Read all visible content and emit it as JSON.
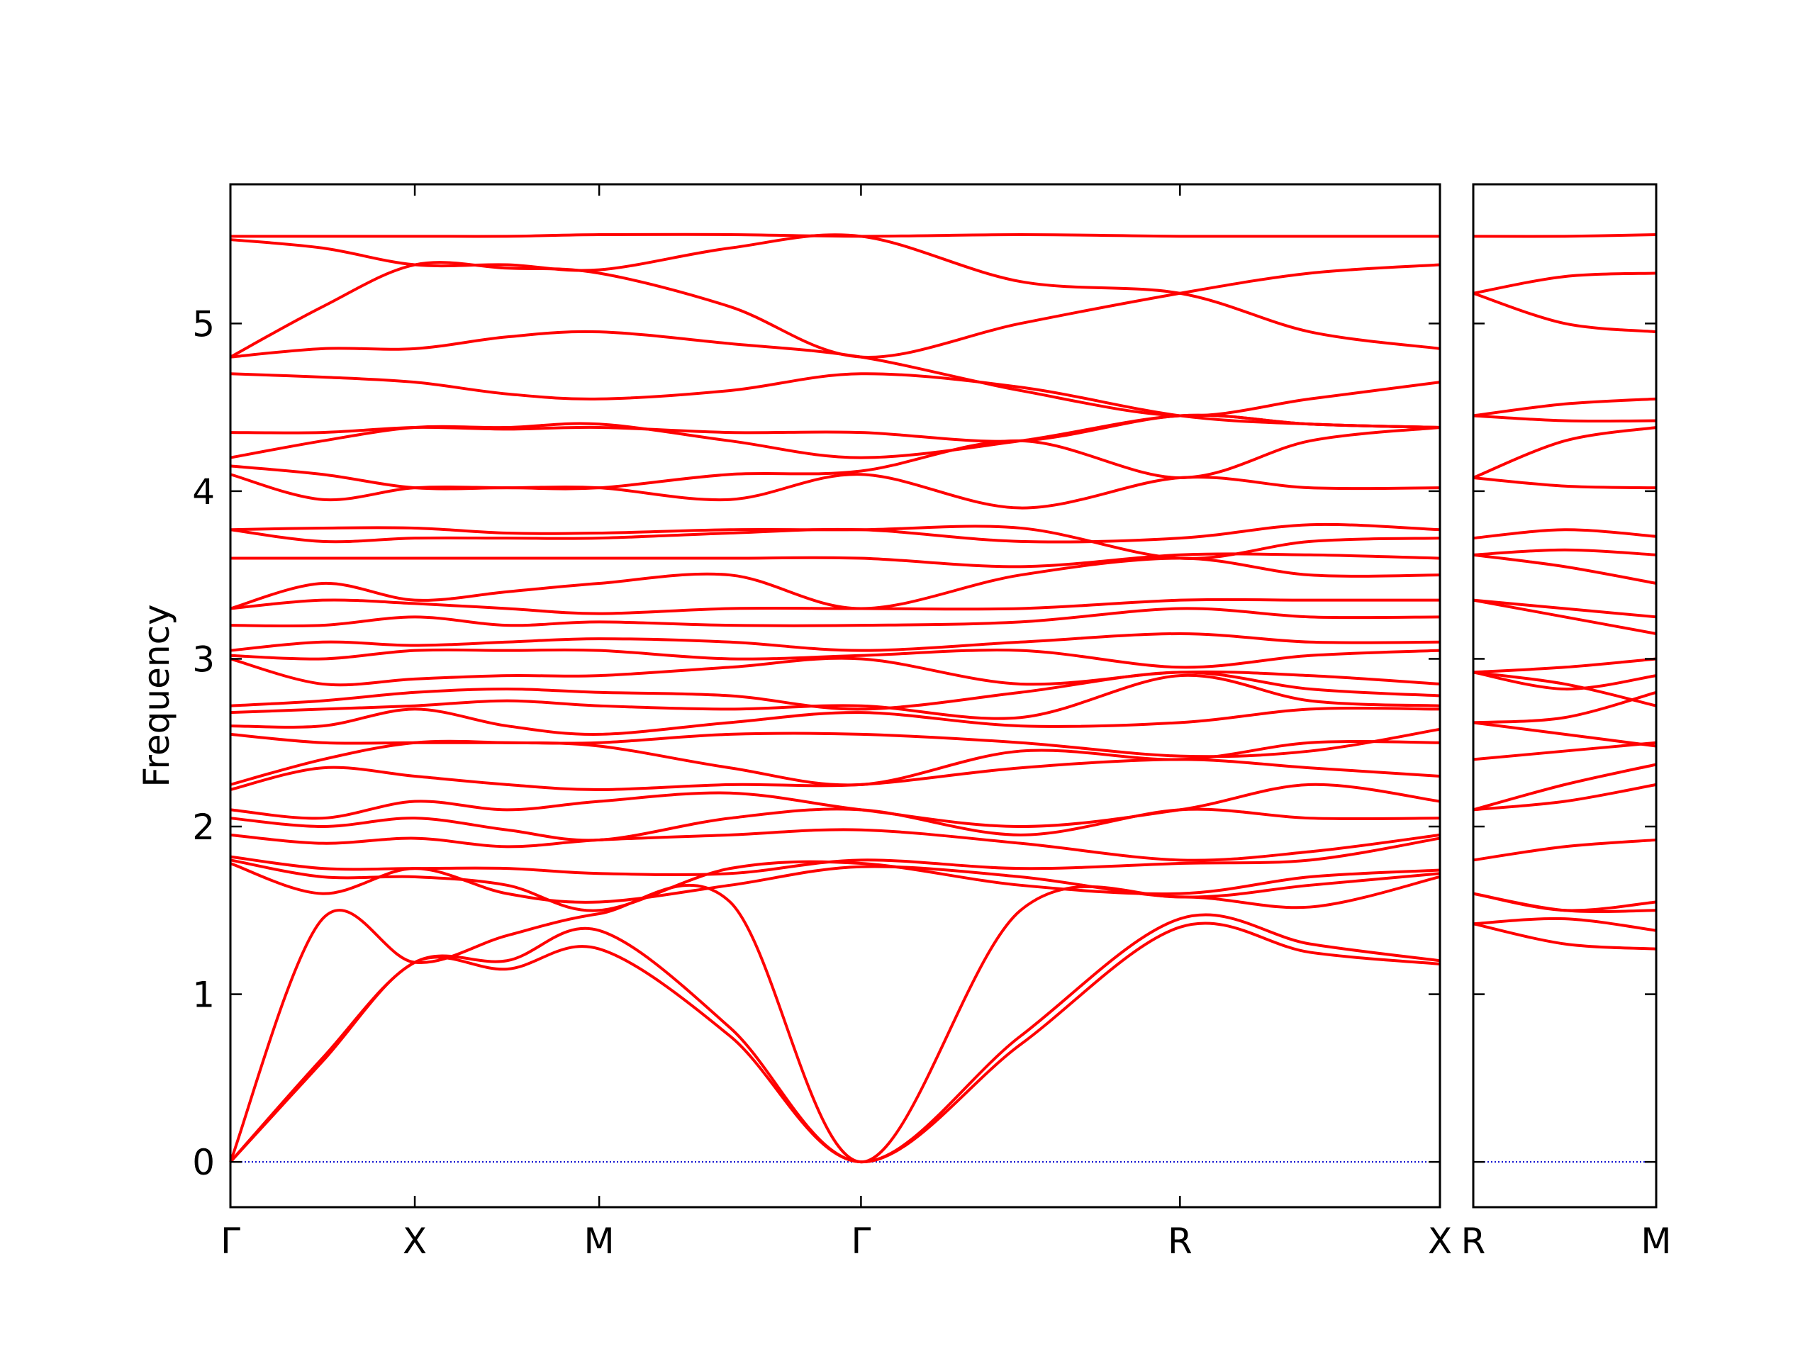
{
  "chart_data": [
    {
      "type": "line",
      "ylabel": "Frequency",
      "color": "#ff0000",
      "x": [
        0,
        0.5,
        1,
        1.5,
        2,
        2.71,
        3.42,
        4.285,
        5.15,
        5.855,
        6.56
      ],
      "xlim": [
        0,
        6.56
      ],
      "xticks": [
        {
          "value": 0,
          "label": "Γ"
        },
        {
          "value": 1,
          "label": "X"
        },
        {
          "value": 2,
          "label": "M"
        },
        {
          "value": 3.42,
          "label": "Γ"
        },
        {
          "value": 5.15,
          "label": "R"
        },
        {
          "value": 6.56,
          "label": "X"
        }
      ],
      "ylim": [
        -0.27,
        5.83
      ],
      "yticks": [
        0,
        1,
        2,
        3,
        4,
        5
      ],
      "show_ytick_labels": true,
      "hlines": [
        {
          "y": 0,
          "color": "#0000cc",
          "style": "dotted"
        }
      ],
      "series": [
        {
          "values": [
            0,
            0.6,
            1.19,
            1.15,
            1.27,
            0.75,
            0,
            0.7,
            1.4,
            1.25,
            1.18
          ]
        },
        {
          "values": [
            0,
            0.62,
            1.19,
            1.2,
            1.38,
            0.8,
            0,
            0.75,
            1.45,
            1.3,
            1.2
          ]
        },
        {
          "values": [
            0,
            1.45,
            1.19,
            1.35,
            1.48,
            1.55,
            0,
            1.5,
            1.58,
            1.52,
            1.7
          ]
        },
        {
          "values": [
            1.78,
            1.6,
            1.75,
            1.6,
            1.55,
            1.65,
            1.76,
            1.7,
            1.58,
            1.65,
            1.72
          ]
        },
        {
          "values": [
            1.8,
            1.7,
            1.7,
            1.65,
            1.5,
            1.75,
            1.78,
            1.65,
            1.6,
            1.7,
            1.74
          ]
        },
        {
          "values": [
            1.82,
            1.75,
            1.75,
            1.75,
            1.72,
            1.72,
            1.8,
            1.75,
            1.78,
            1.8,
            1.93
          ]
        },
        {
          "values": [
            1.95,
            1.9,
            1.93,
            1.88,
            1.92,
            1.95,
            1.98,
            1.9,
            1.8,
            1.85,
            1.95
          ]
        },
        {
          "values": [
            2.05,
            2.0,
            2.05,
            1.98,
            1.92,
            2.05,
            2.1,
            1.95,
            2.1,
            2.05,
            2.05
          ]
        },
        {
          "values": [
            2.1,
            2.05,
            2.15,
            2.1,
            2.15,
            2.2,
            2.1,
            2.0,
            2.1,
            2.25,
            2.15
          ]
        },
        {
          "values": [
            2.22,
            2.35,
            2.3,
            2.25,
            2.22,
            2.25,
            2.25,
            2.35,
            2.4,
            2.35,
            2.3
          ]
        },
        {
          "values": [
            2.25,
            2.4,
            2.5,
            2.5,
            2.48,
            2.35,
            2.25,
            2.45,
            2.4,
            2.5,
            2.5
          ]
        },
        {
          "values": [
            2.55,
            2.5,
            2.5,
            2.5,
            2.5,
            2.55,
            2.55,
            2.5,
            2.42,
            2.45,
            2.58
          ]
        },
        {
          "values": [
            2.6,
            2.6,
            2.7,
            2.6,
            2.55,
            2.62,
            2.68,
            2.6,
            2.62,
            2.7,
            2.7
          ]
        },
        {
          "values": [
            2.68,
            2.7,
            2.72,
            2.75,
            2.72,
            2.7,
            2.72,
            2.65,
            2.9,
            2.75,
            2.72
          ]
        },
        {
          "values": [
            2.72,
            2.75,
            2.8,
            2.82,
            2.8,
            2.78,
            2.7,
            2.8,
            2.92,
            2.82,
            2.78
          ]
        },
        {
          "values": [
            3.0,
            2.85,
            2.88,
            2.9,
            2.9,
            2.95,
            3.0,
            2.85,
            2.92,
            2.9,
            2.85
          ]
        },
        {
          "values": [
            3.02,
            3.0,
            3.05,
            3.05,
            3.05,
            3.0,
            3.02,
            3.05,
            2.95,
            3.02,
            3.05
          ]
        },
        {
          "values": [
            3.05,
            3.1,
            3.08,
            3.1,
            3.12,
            3.1,
            3.05,
            3.1,
            3.15,
            3.1,
            3.1
          ]
        },
        {
          "values": [
            3.2,
            3.2,
            3.25,
            3.2,
            3.22,
            3.2,
            3.2,
            3.22,
            3.3,
            3.25,
            3.25
          ]
        },
        {
          "values": [
            3.3,
            3.35,
            3.33,
            3.3,
            3.27,
            3.3,
            3.3,
            3.3,
            3.35,
            3.35,
            3.35
          ]
        },
        {
          "values": [
            3.3,
            3.45,
            3.35,
            3.4,
            3.45,
            3.5,
            3.3,
            3.5,
            3.6,
            3.5,
            3.5
          ]
        },
        {
          "values": [
            3.6,
            3.6,
            3.6,
            3.6,
            3.6,
            3.6,
            3.6,
            3.55,
            3.62,
            3.62,
            3.6
          ]
        },
        {
          "values": [
            3.77,
            3.7,
            3.72,
            3.72,
            3.72,
            3.75,
            3.77,
            3.7,
            3.72,
            3.8,
            3.77
          ]
        },
        {
          "values": [
            3.77,
            3.78,
            3.78,
            3.75,
            3.75,
            3.77,
            3.77,
            3.78,
            3.6,
            3.7,
            3.72
          ]
        },
        {
          "values": [
            4.1,
            3.95,
            4.02,
            4.02,
            4.02,
            3.95,
            4.1,
            3.9,
            4.08,
            4.02,
            4.02
          ]
        },
        {
          "values": [
            4.15,
            4.1,
            4.02,
            4.02,
            4.02,
            4.1,
            4.12,
            4.3,
            4.08,
            4.3,
            4.38
          ]
        },
        {
          "values": [
            4.2,
            4.3,
            4.38,
            4.38,
            4.4,
            4.3,
            4.2,
            4.3,
            4.45,
            4.4,
            4.38
          ]
        },
        {
          "values": [
            4.35,
            4.35,
            4.38,
            4.37,
            4.38,
            4.35,
            4.35,
            4.3,
            4.45,
            4.4,
            4.38
          ]
        },
        {
          "values": [
            4.7,
            4.68,
            4.65,
            4.58,
            4.55,
            4.6,
            4.7,
            4.62,
            4.45,
            4.4,
            4.38
          ]
        },
        {
          "values": [
            4.8,
            4.85,
            4.85,
            4.92,
            4.95,
            4.88,
            4.8,
            4.6,
            4.45,
            4.55,
            4.65
          ]
        },
        {
          "values": [
            4.8,
            5.1,
            5.35,
            5.33,
            5.3,
            5.1,
            4.8,
            5.0,
            5.18,
            5.3,
            5.35
          ]
        },
        {
          "values": [
            5.5,
            5.45,
            5.35,
            5.35,
            5.32,
            5.45,
            5.52,
            5.25,
            5.18,
            4.95,
            4.85
          ]
        },
        {
          "values": [
            5.52,
            5.52,
            5.52,
            5.52,
            5.53,
            5.53,
            5.52,
            5.53,
            5.52,
            5.52,
            5.52
          ]
        }
      ]
    },
    {
      "type": "line",
      "color": "#ff0000",
      "x": [
        0,
        0.5,
        1
      ],
      "xlim": [
        0,
        1
      ],
      "xticks": [
        {
          "value": 0,
          "label": "R"
        },
        {
          "value": 1,
          "label": "M"
        }
      ],
      "ylim": [
        -0.27,
        5.83
      ],
      "yticks": [
        0,
        1,
        2,
        3,
        4,
        5
      ],
      "show_ytick_labels": false,
      "hlines": [
        {
          "y": 0,
          "color": "#0000cc",
          "style": "dotted"
        }
      ],
      "series": [
        {
          "values": [
            1.42,
            1.3,
            1.27
          ]
        },
        {
          "values": [
            1.42,
            1.45,
            1.38
          ]
        },
        {
          "values": [
            1.6,
            1.5,
            1.5
          ]
        },
        {
          "values": [
            1.6,
            1.5,
            1.55
          ]
        },
        {
          "values": [
            1.8,
            1.88,
            1.92
          ]
        },
        {
          "values": [
            2.1,
            2.15,
            2.25
          ]
        },
        {
          "values": [
            2.1,
            2.25,
            2.37
          ]
        },
        {
          "values": [
            2.4,
            2.45,
            2.5
          ]
        },
        {
          "values": [
            2.62,
            2.65,
            2.8
          ]
        },
        {
          "values": [
            2.62,
            2.55,
            2.48
          ]
        },
        {
          "values": [
            2.92,
            2.85,
            2.72
          ]
        },
        {
          "values": [
            2.92,
            2.95,
            3.0
          ]
        },
        {
          "values": [
            2.92,
            2.82,
            2.9
          ]
        },
        {
          "values": [
            3.35,
            3.3,
            3.25
          ]
        },
        {
          "values": [
            3.35,
            3.25,
            3.15
          ]
        },
        {
          "values": [
            3.62,
            3.55,
            3.45
          ]
        },
        {
          "values": [
            3.62,
            3.65,
            3.62
          ]
        },
        {
          "values": [
            3.72,
            3.77,
            3.73
          ]
        },
        {
          "values": [
            4.08,
            4.03,
            4.02
          ]
        },
        {
          "values": [
            4.08,
            4.3,
            4.38
          ]
        },
        {
          "values": [
            4.45,
            4.42,
            4.42
          ]
        },
        {
          "values": [
            4.45,
            4.52,
            4.55
          ]
        },
        {
          "values": [
            5.18,
            5.0,
            4.95
          ]
        },
        {
          "values": [
            5.18,
            5.28,
            5.3
          ]
        },
        {
          "values": [
            5.52,
            5.52,
            5.53
          ]
        }
      ]
    }
  ]
}
